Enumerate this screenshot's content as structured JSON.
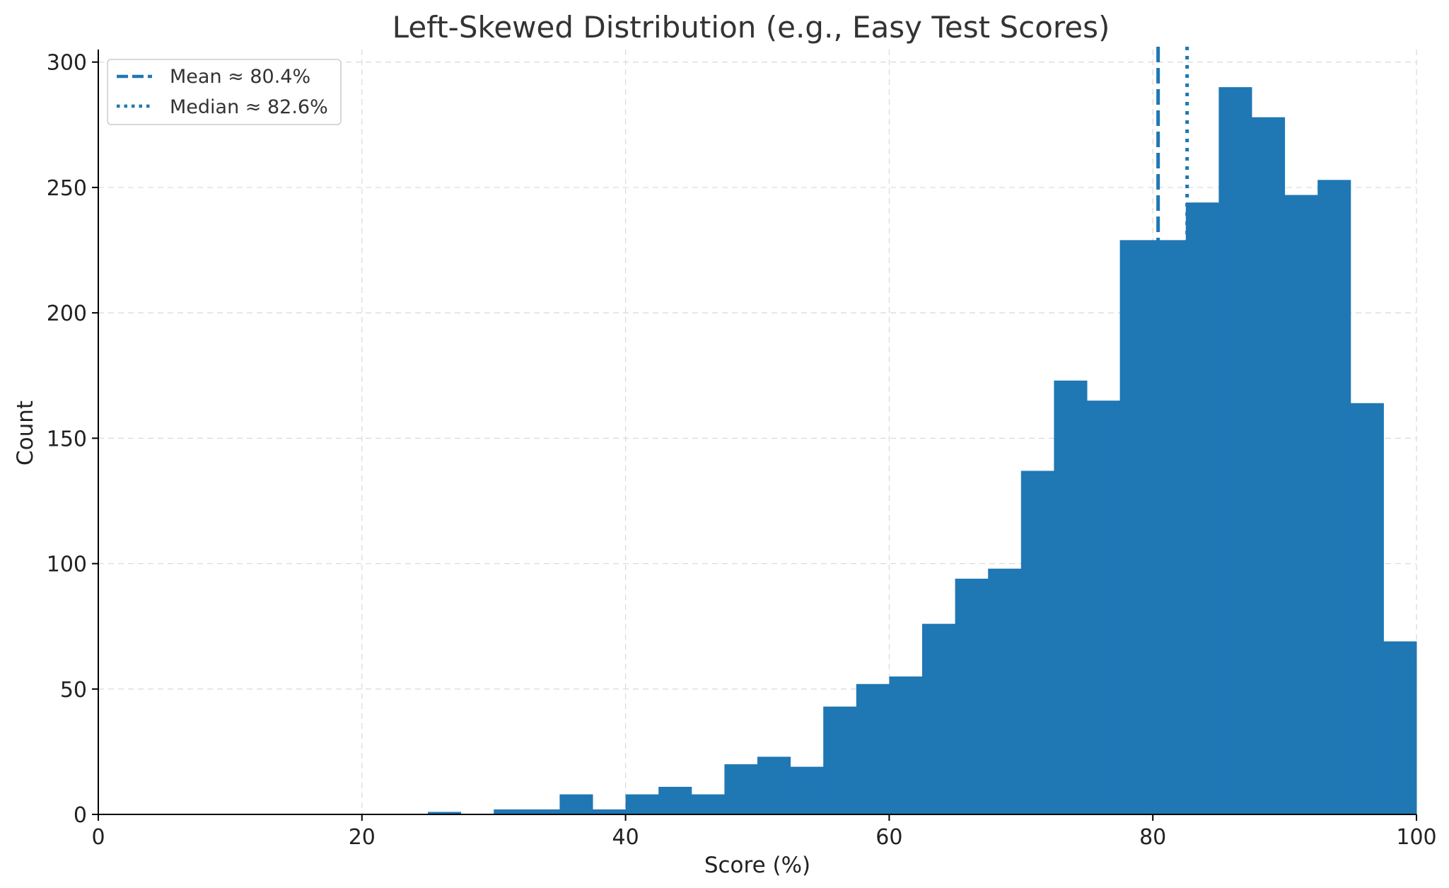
{
  "chart_data": {
    "type": "bar",
    "subtype": "histogram",
    "title": "Left-Skewed Distribution (e.g., Easy Test Scores)",
    "xlabel": "Score (%)",
    "ylabel": "Count",
    "xlim": [
      0,
      100
    ],
    "ylim": [
      0,
      305
    ],
    "xticks": [
      0,
      20,
      40,
      60,
      80,
      100
    ],
    "yticks": [
      0,
      50,
      100,
      150,
      200,
      250,
      300
    ],
    "grid": true,
    "legend_position": "top-left",
    "bar_color": "#1f77b4",
    "bins": [
      {
        "x0": 25.0,
        "x1": 27.5,
        "count": 1
      },
      {
        "x0": 27.5,
        "x1": 30.0,
        "count": 0
      },
      {
        "x0": 30.0,
        "x1": 32.5,
        "count": 2
      },
      {
        "x0": 32.5,
        "x1": 35.0,
        "count": 2
      },
      {
        "x0": 35.0,
        "x1": 37.5,
        "count": 8
      },
      {
        "x0": 37.5,
        "x1": 40.0,
        "count": 2
      },
      {
        "x0": 40.0,
        "x1": 42.5,
        "count": 8
      },
      {
        "x0": 42.5,
        "x1": 45.0,
        "count": 11
      },
      {
        "x0": 45.0,
        "x1": 47.5,
        "count": 8
      },
      {
        "x0": 47.5,
        "x1": 50.0,
        "count": 20
      },
      {
        "x0": 50.0,
        "x1": 52.5,
        "count": 23
      },
      {
        "x0": 52.5,
        "x1": 55.0,
        "count": 19
      },
      {
        "x0": 55.0,
        "x1": 57.5,
        "count": 43
      },
      {
        "x0": 57.5,
        "x1": 60.0,
        "count": 52
      },
      {
        "x0": 60.0,
        "x1": 62.5,
        "count": 55
      },
      {
        "x0": 62.5,
        "x1": 65.0,
        "count": 76
      },
      {
        "x0": 65.0,
        "x1": 67.5,
        "count": 94
      },
      {
        "x0": 67.5,
        "x1": 70.0,
        "count": 98
      },
      {
        "x0": 70.0,
        "x1": 72.5,
        "count": 137
      },
      {
        "x0": 72.5,
        "x1": 75.0,
        "count": 173
      },
      {
        "x0": 75.0,
        "x1": 77.5,
        "count": 165
      },
      {
        "x0": 77.5,
        "x1": 80.0,
        "count": 229
      },
      {
        "x0": 80.0,
        "x1": 82.5,
        "count": 229
      },
      {
        "x0": 82.5,
        "x1": 85.0,
        "count": 244
      },
      {
        "x0": 85.0,
        "x1": 87.5,
        "count": 290
      },
      {
        "x0": 87.5,
        "x1": 90.0,
        "count": 278
      },
      {
        "x0": 90.0,
        "x1": 92.5,
        "count": 247
      },
      {
        "x0": 92.5,
        "x1": 95.0,
        "count": 253
      },
      {
        "x0": 95.0,
        "x1": 97.5,
        "count": 164
      },
      {
        "x0": 97.5,
        "x1": 100.0,
        "count": 69
      }
    ],
    "reference_lines": [
      {
        "name": "Mean ≈ 80.4%",
        "x": 80.4,
        "style": "dashed",
        "color": "#1f77b4"
      },
      {
        "name": "Median ≈ 82.6%",
        "x": 82.6,
        "style": "dotted",
        "color": "#1f77b4"
      }
    ]
  }
}
